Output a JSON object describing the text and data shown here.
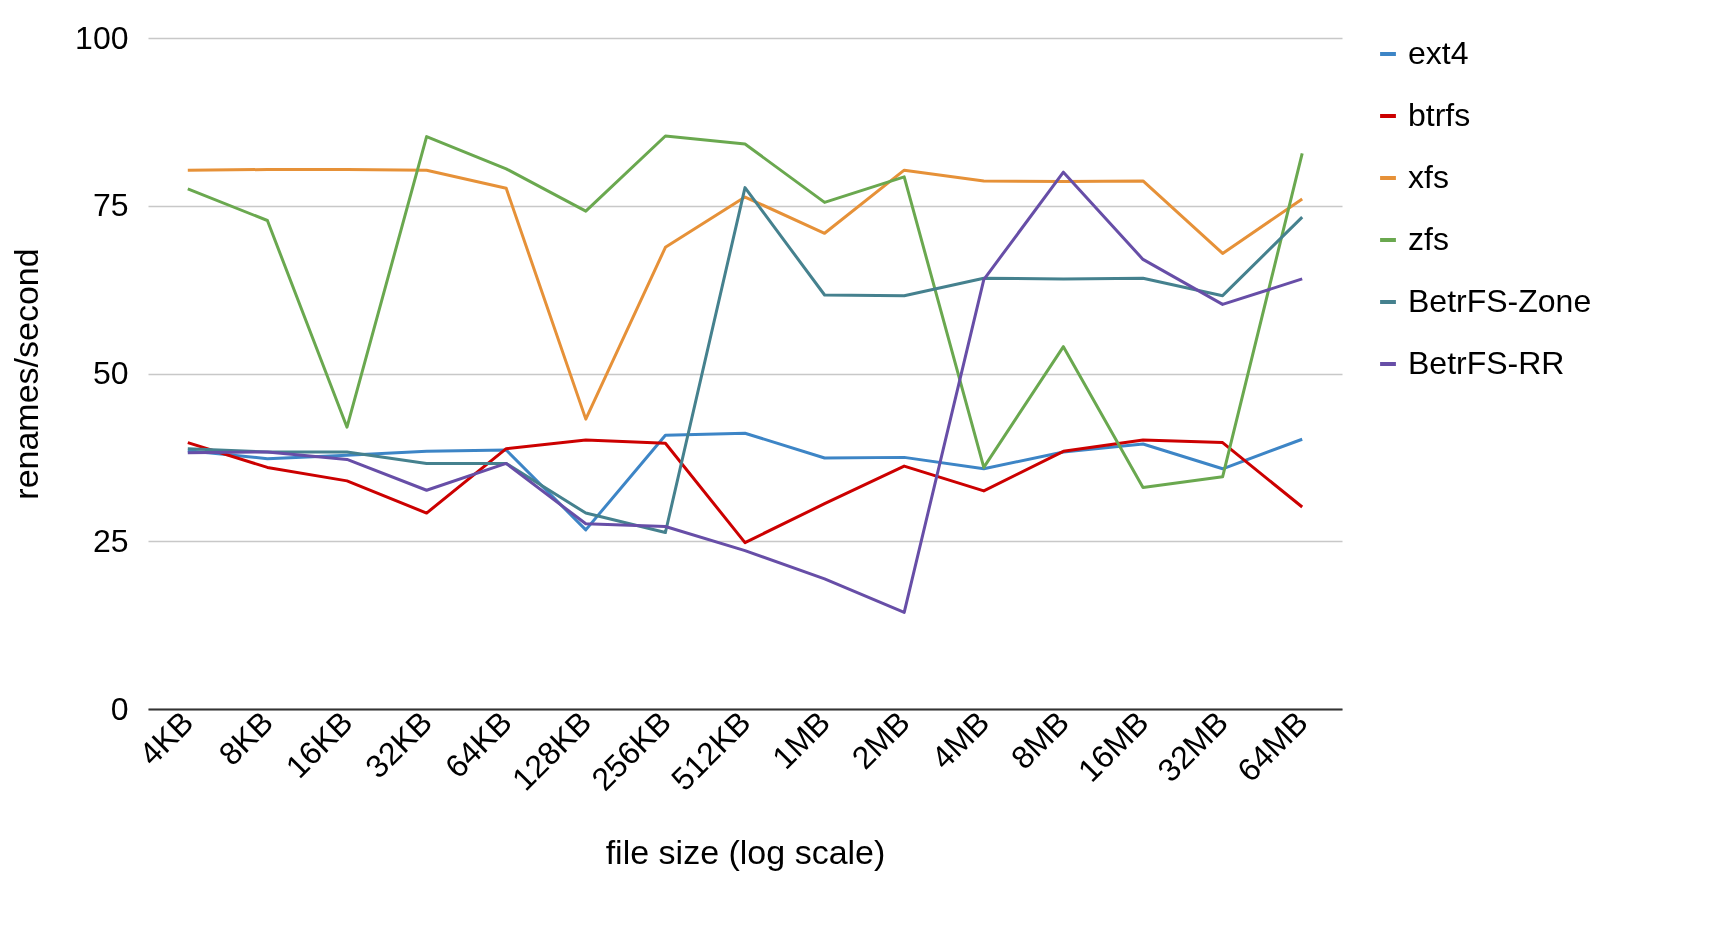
{
  "chart_data": {
    "type": "line",
    "xlabel": "file size (log scale)",
    "ylabel": "renames/second",
    "categories": [
      "4KB",
      "8KB",
      "16KB",
      "32KB",
      "64KB",
      "128KB",
      "256KB",
      "512KB",
      "1MB",
      "2MB",
      "4MB",
      "8MB",
      "16MB",
      "32MB",
      "64MB"
    ],
    "ylim": [
      0,
      100
    ],
    "yticks": [
      0,
      25,
      50,
      75,
      100
    ],
    "grid": "y",
    "legend": "top right",
    "series": [
      {
        "name": "ext4",
        "color": "#3d85c6",
        "values": [
          38.5,
          37.3,
          37.8,
          38.4,
          38.6,
          26.7,
          40.8,
          41.1,
          37.4,
          37.5,
          35.8,
          38.3,
          39.5,
          35.8,
          40.2
        ]
      },
      {
        "name": "btrfs",
        "color": "#cc0000",
        "values": [
          39.7,
          36.0,
          34.0,
          29.2,
          38.8,
          40.1,
          39.6,
          24.8,
          30.6,
          36.2,
          32.5,
          38.4,
          40.1,
          39.7,
          30.1
        ]
      },
      {
        "name": "xfs",
        "color": "#e69138",
        "values": [
          80.3,
          80.4,
          80.4,
          80.3,
          77.6,
          43.2,
          68.8,
          76.3,
          70.9,
          80.3,
          78.7,
          78.6,
          78.7,
          67.9,
          76.0
        ]
      },
      {
        "name": "zfs",
        "color": "#6aa84f",
        "values": [
          77.5,
          72.8,
          42.0,
          85.3,
          80.5,
          74.2,
          85.4,
          84.2,
          75.5,
          79.3,
          36.0,
          54.0,
          33.0,
          34.6,
          82.8
        ]
      },
      {
        "name": "BetrFS-Zone",
        "color": "#45818e",
        "values": [
          38.8,
          38.3,
          38.3,
          36.6,
          36.6,
          29.2,
          26.3,
          77.7,
          61.7,
          61.6,
          64.2,
          64.1,
          64.2,
          61.6,
          73.3
        ]
      },
      {
        "name": "BetrFS-RR",
        "color": "#674ea7",
        "values": [
          38.2,
          38.3,
          37.2,
          32.6,
          36.6,
          27.6,
          27.2,
          23.6,
          19.4,
          14.4,
          64.0,
          80.0,
          67.0,
          60.3,
          64.1
        ]
      }
    ]
  }
}
